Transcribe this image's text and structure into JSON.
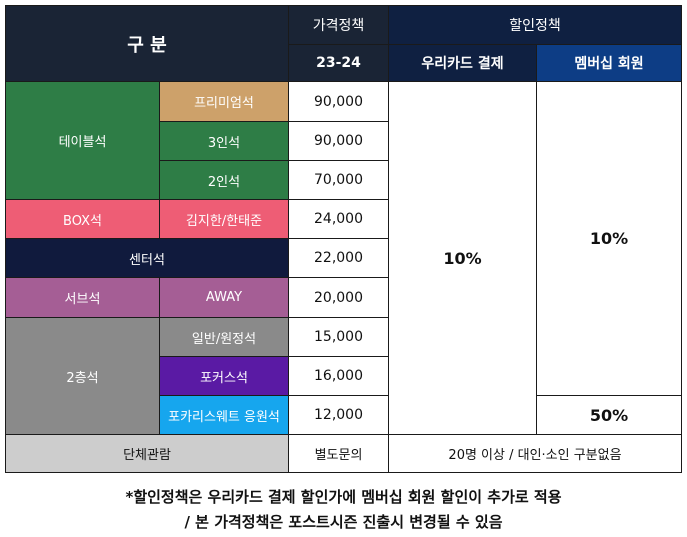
{
  "header": {
    "category": "구 분",
    "price_policy": "가격정책",
    "season": "23-24",
    "discount_policy": "할인정책",
    "woori_card": "우리카드 결제",
    "membership": "멤버십 회원"
  },
  "groups": {
    "table_seat": "테이블석",
    "box_seat": "BOX석",
    "center_seat": "센터석",
    "serve_seat": "서브석",
    "second_floor": "2층석",
    "group": "단체관람"
  },
  "rows": [
    {
      "sub": "프리미엄석",
      "price": "90,000"
    },
    {
      "sub": "3인석",
      "price": "90,000"
    },
    {
      "sub": "2인석",
      "price": "70,000"
    },
    {
      "sub": "김지한/한태준",
      "price": "24,000"
    },
    {
      "sub": "",
      "price": "22,000"
    },
    {
      "sub": "AWAY",
      "price": "20,000"
    },
    {
      "sub": "일반/원정석",
      "price": "15,000"
    },
    {
      "sub": "포커스석",
      "price": "16,000"
    },
    {
      "sub": "포카리스웨트 응원석",
      "price": "12,000"
    }
  ],
  "group_price": "별도문의",
  "woori_discount": "10%",
  "membership_discount": "10%",
  "membership_cheer_discount": "50%",
  "group_discount": "20명 이상 / 대인·소인 구분없음",
  "notes": {
    "line1": "*할인정책은 우리카드 결제 할인가에 멤버십 회원 할인이 추가로 적용",
    "line2": "/ 본 가격정책은 포스트시즌 진출시 변경될 수 있음"
  },
  "colors": {
    "header_dark": "#1a2435",
    "header_navy": "#0f2041",
    "header_blue": "#0d3d85",
    "table_seat": "#2e7d46",
    "premium": "#cda16a",
    "box": "#ee5d75",
    "center": "#101a3d",
    "serve": "#a55e95",
    "second_floor": "#8a8a8a",
    "focus": "#5a1aa4",
    "pocari": "#16a6ee",
    "group": "#cdcdcd"
  }
}
